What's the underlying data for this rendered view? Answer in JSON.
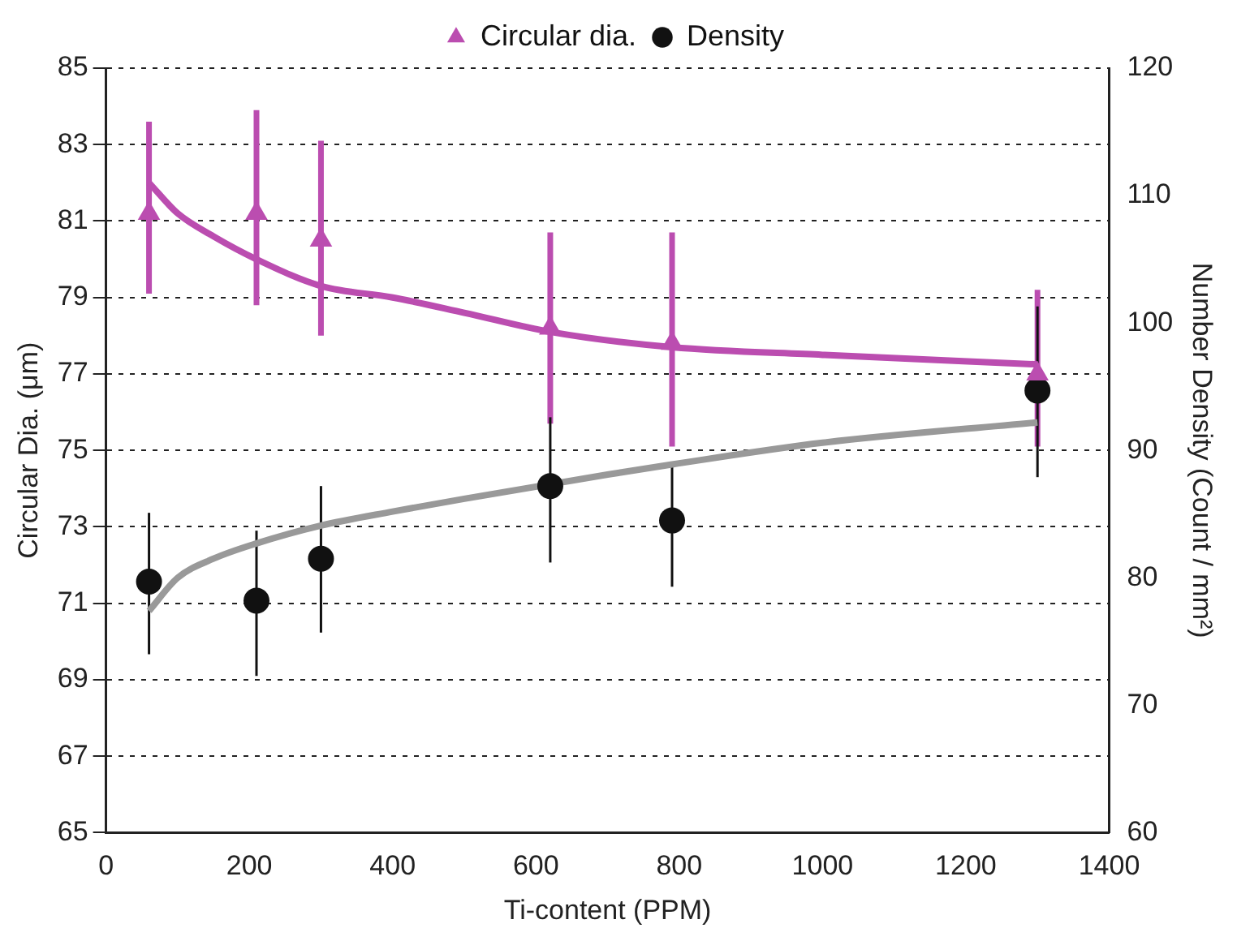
{
  "chart_data": {
    "type": "scatter",
    "xlabel": "Ti-content (PPM)",
    "ylabel": "Circular Dia. (μm)",
    "y2label": "Number Density (Count / mm²)",
    "xlim": [
      0,
      1400
    ],
    "xticks": [
      0,
      200,
      400,
      600,
      800,
      1000,
      1200,
      1400
    ],
    "ylim": [
      65,
      85
    ],
    "yticks": [
      65,
      67,
      69,
      71,
      73,
      75,
      77,
      79,
      81,
      83,
      85
    ],
    "y2lim": [
      60,
      120
    ],
    "y2ticks": [
      60,
      70,
      80,
      90,
      100,
      110,
      120
    ],
    "grid": "y",
    "legend": "top",
    "series": [
      {
        "name": "Circular dia.",
        "marker": "triangle",
        "color": "#bb4db0",
        "x": [
          60,
          210,
          300,
          620,
          790,
          1300
        ],
        "values": [
          81.2,
          81.2,
          80.5,
          78.2,
          77.8,
          77.0
        ],
        "errors": [
          [
            79.1,
            83.6
          ],
          [
            78.8,
            83.9
          ],
          [
            78.0,
            83.1
          ],
          [
            75.7,
            80.7
          ],
          [
            75.1,
            80.7
          ],
          [
            75.1,
            79.2
          ]
        ]
      },
      {
        "name": "Density",
        "axis": "y2",
        "marker": "circle",
        "color": "#111111",
        "x": [
          60,
          210,
          300,
          620,
          790,
          1300
        ],
        "values": [
          79.7,
          78.2,
          81.5,
          87.2,
          84.5,
          94.7
        ],
        "errors": [
          [
            74.0,
            85.1
          ],
          [
            72.3,
            83.7
          ],
          [
            75.7,
            87.2
          ],
          [
            81.2,
            92.6
          ],
          [
            79.3,
            88.8
          ],
          [
            87.9,
            101.3
          ]
        ]
      },
      {
        "type": "line",
        "marker": "none",
        "color": "#bb4db0",
        "x": [
          60,
          100,
          150,
          210,
          300,
          400,
          500,
          620,
          790,
          1000,
          1300
        ],
        "values": [
          82.0,
          81.2,
          80.6,
          80.0,
          79.3,
          79.0,
          78.6,
          78.1,
          77.7,
          77.5,
          77.25
        ]
      },
      {
        "type": "line",
        "axis": "y2",
        "marker": "none",
        "color": "#999999",
        "x": [
          60,
          100,
          150,
          210,
          300,
          400,
          500,
          700,
          790,
          1000,
          1300
        ],
        "values": [
          77.4,
          80.0,
          81.5,
          82.7,
          84.1,
          85.2,
          86.2,
          88.1,
          88.9,
          90.6,
          92.2
        ]
      }
    ]
  }
}
